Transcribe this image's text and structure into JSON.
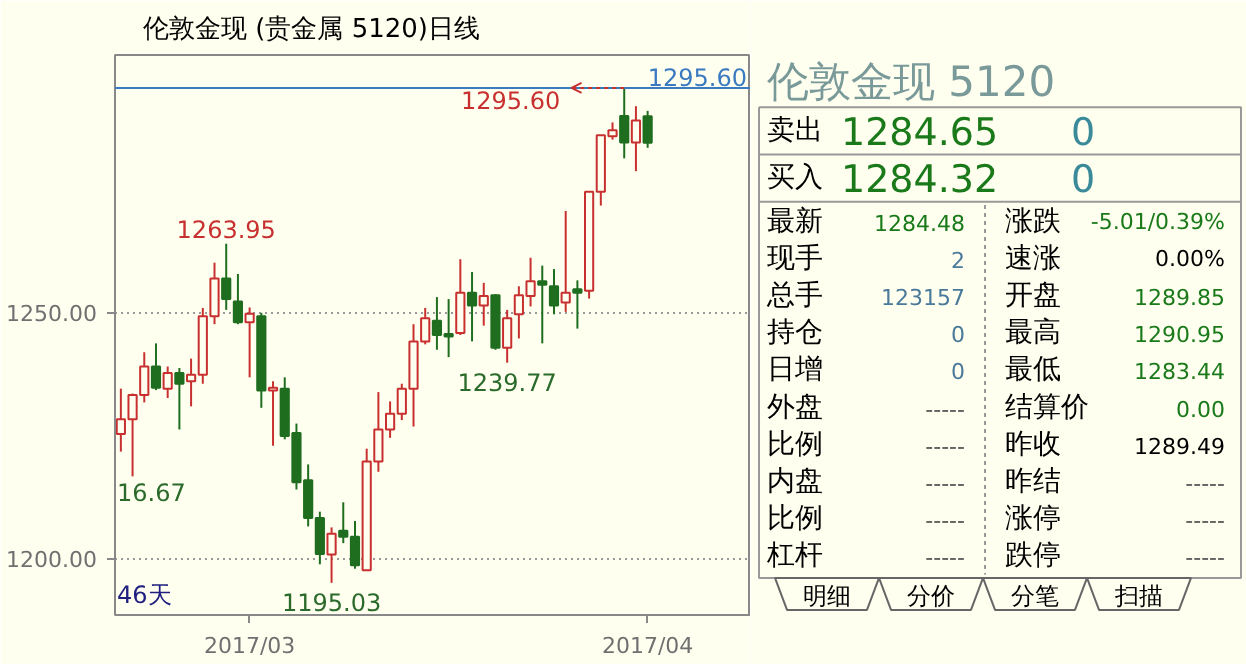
{
  "chart_data": [
    {
      "type": "candlestick",
      "title": "伦敦金现 (贵金属 5120)日线",
      "categories": [
        null,
        null,
        null,
        null,
        null,
        null,
        null,
        null,
        null,
        null,
        null,
        "2017/03",
        null,
        null,
        null,
        null,
        null,
        null,
        null,
        null,
        null,
        null,
        null,
        null,
        null,
        null,
        null,
        null,
        null,
        null,
        null,
        null,
        null,
        null,
        null,
        null,
        null,
        null,
        null,
        null,
        null,
        null,
        null,
        null,
        null,
        "2017/04"
      ],
      "ohlc": [
        [
          1225.3,
          1234.5,
          1221.7,
          1228.3
        ],
        [
          1228.3,
          1233.5,
          1216.67,
          1233.2
        ],
        [
          1233.2,
          1241.9,
          1231.7,
          1239.0
        ],
        [
          1239.0,
          1243.7,
          1234.2,
          1234.7
        ],
        [
          1234.5,
          1239.0,
          1232.6,
          1237.7
        ],
        [
          1237.7,
          1238.7,
          1226.2,
          1235.5
        ],
        [
          1236.0,
          1240.6,
          1230.9,
          1237.3
        ],
        [
          1237.3,
          1250.9,
          1235.5,
          1249.2
        ],
        [
          1249.2,
          1260.1,
          1247.6,
          1256.9
        ],
        [
          1256.9,
          1263.95,
          1250.5,
          1252.7
        ],
        [
          1252.2,
          1257.8,
          1247.6,
          1248.0
        ],
        [
          1248.0,
          1251.0,
          1236.8,
          1249.7
        ],
        [
          1249.2,
          1249.9,
          1230.6,
          1234.1
        ],
        [
          1234.1,
          1236.0,
          1222.9,
          1234.7
        ],
        [
          1234.5,
          1236.8,
          1224.2,
          1224.9
        ],
        [
          1225.5,
          1227.4,
          1214.0,
          1215.5
        ],
        [
          1215.9,
          1219.1,
          1206.5,
          1208.2
        ],
        [
          1208.2,
          1209.5,
          1198.8,
          1200.9
        ],
        [
          1200.8,
          1206.3,
          1195.03,
          1205.0
        ],
        [
          1205.6,
          1211.4,
          1203.1,
          1204.4
        ],
        [
          1204.4,
          1207.6,
          1197.9,
          1198.6
        ],
        [
          1197.6,
          1222.3,
          1197.6,
          1219.7
        ],
        [
          1219.7,
          1233.8,
          1217.6,
          1226.2
        ],
        [
          1226.2,
          1231.9,
          1224.5,
          1229.4
        ],
        [
          1229.4,
          1235.5,
          1228.1,
          1234.5
        ],
        [
          1234.5,
          1247.6,
          1226.8,
          1244.1
        ],
        [
          1244.1,
          1250.9,
          1243.5,
          1248.8
        ],
        [
          1248.3,
          1253.1,
          1242.4,
          1245.4
        ],
        [
          1245.6,
          1252.7,
          1240.9,
          1245.1
        ],
        [
          1245.8,
          1260.8,
          1245.4,
          1254.0
        ],
        [
          1254.0,
          1258.2,
          1244.1,
          1251.4
        ],
        [
          1251.4,
          1256.0,
          1247.3,
          1253.3
        ],
        [
          1253.5,
          1253.7,
          1242.4,
          1242.8
        ],
        [
          1242.8,
          1250.5,
          1239.77,
          1248.8
        ],
        [
          1249.6,
          1255.3,
          1244.7,
          1253.5
        ],
        [
          1253.3,
          1261.1,
          1251.2,
          1256.3
        ],
        [
          1256.3,
          1259.5,
          1243.7,
          1255.6
        ],
        [
          1255.3,
          1258.8,
          1249.6,
          1251.4
        ],
        [
          1252.0,
          1270.6,
          1250.1,
          1254.0
        ],
        [
          1254.7,
          1256.5,
          1246.7,
          1254.0
        ],
        [
          1254.4,
          1274.5,
          1252.8,
          1274.5
        ],
        [
          1274.5,
          1286.0,
          1271.7,
          1286.0
        ],
        [
          1285.8,
          1288.6,
          1285.1,
          1287.0
        ],
        [
          1289.9,
          1295.6,
          1281.3,
          1284.5
        ],
        [
          1284.5,
          1291.9,
          1278.7,
          1289.0
        ],
        [
          1289.85,
          1290.95,
          1283.44,
          1284.48
        ]
      ],
      "ylim": [
        1188.5,
        1302.3
      ],
      "yticks": [
        {
          "value": 1200,
          "label": "1200.00"
        },
        {
          "value": 1250,
          "label": "1250.00"
        }
      ],
      "grid": "y",
      "ref_lines": [
        {
          "axis": "y",
          "value": 1295.6,
          "label": "1295.60",
          "color": "#3a7ac0"
        }
      ],
      "annotations": [
        {
          "text": "1263.95",
          "y": 1263.95
        },
        "16.67",
        {
          "text": "1195.03",
          "y": 1195.03
        },
        {
          "text": "1239.77",
          "y": 1239.77
        },
        {
          "text": "1295.60",
          "y": 1295.6
        },
        "46天"
      ]
    },
    {
      "type": "other",
      "title": "伦敦金现 5120",
      "annotations": [
        "卖出",
        "1284.65",
        "0",
        "买入",
        "1284.32",
        "0",
        "最新",
        "1284.48",
        "涨跌",
        "-5.01/0.39%",
        "现手",
        "2",
        "速涨",
        "0.00%",
        "总手",
        "123157",
        "开盘",
        "1289.85",
        "持仓",
        "0",
        "最高",
        "1290.95",
        "日增",
        "0",
        "最低",
        "1283.44",
        "外盘",
        "-----",
        "结算价",
        "0.00",
        "比例",
        "-----",
        "昨收",
        "1289.49",
        "内盘",
        "-----",
        "昨结",
        "-----",
        "比例",
        "-----",
        "涨停",
        "-----",
        "杠杆",
        "-----",
        "跌停",
        "-----",
        "明细",
        "分价",
        "分笔",
        "扫描"
      ],
      "colors": [
        "#000000",
        "#1a7a1a",
        "#3a8a9a",
        "#000000",
        "#1a7a1a",
        "#3a8a9a",
        "#000000",
        "#1a7a1a",
        "#000000",
        "#1a7a1a",
        "#000000",
        "#4a7a9a",
        "#000000",
        "#000000",
        "#000000",
        "#4a7a9a",
        "#000000",
        "#1a7a1a",
        "#000000",
        "#4a7a9a",
        "#000000",
        "#1a7a1a",
        "#000000",
        "#4a7a9a",
        "#000000",
        "#1a7a1a",
        "#000000",
        "#555555",
        "#000000",
        "#1a7a1a",
        "#000000",
        "#555555",
        "#000000",
        "#000000",
        "#000000",
        "#555555",
        "#000000",
        "#555555",
        "#000000",
        "#555555",
        "#000000",
        "#555555",
        "#000000",
        "#555555",
        "#000000",
        "#555555",
        "#000000",
        "#000000",
        "#000000",
        "#000000"
      ]
    }
  ]
}
